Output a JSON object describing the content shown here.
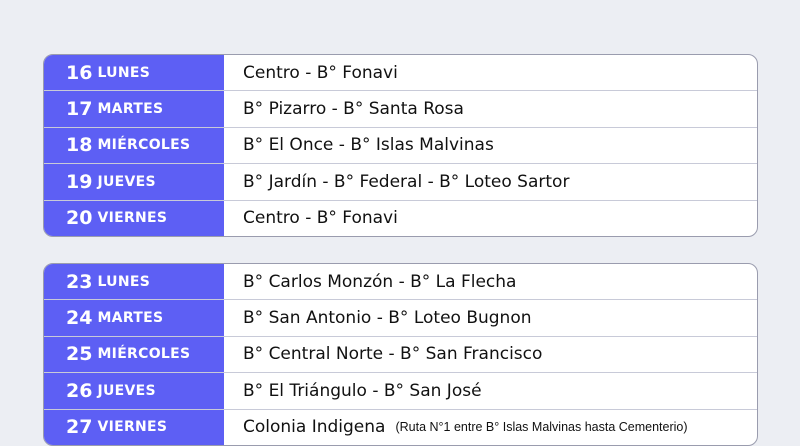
{
  "colors": {
    "day_bg": "#5d5ff4",
    "page_bg": "#eceef3"
  },
  "weeks": [
    {
      "rows": [
        {
          "num": "16",
          "day": "LUNES",
          "place": "Centro - B° Fonavi"
        },
        {
          "num": "17",
          "day": "MARTES",
          "place": "B° Pizarro - B° Santa Rosa"
        },
        {
          "num": "18",
          "day": "MIÉRCOLES",
          "place": "B° El Once - B° Islas Malvinas"
        },
        {
          "num": "19",
          "day": "JUEVES",
          "place": "B° Jardín - B° Federal - B° Loteo Sartor"
        },
        {
          "num": "20",
          "day": "VIERNES",
          "place": "Centro - B° Fonavi"
        }
      ]
    },
    {
      "rows": [
        {
          "num": "23",
          "day": "LUNES",
          "place": "B° Carlos Monzón - B° La Flecha"
        },
        {
          "num": "24",
          "day": "MARTES",
          "place": "B° San Antonio - B° Loteo Bugnon"
        },
        {
          "num": "25",
          "day": "MIÉRCOLES",
          "place": "B° Central Norte - B° San Francisco"
        },
        {
          "num": "26",
          "day": "JUEVES",
          "place": "B° El Triángulo - B° San José"
        },
        {
          "num": "27",
          "day": "VIERNES",
          "place": "Colonia Indigena",
          "note": "(Ruta N°1 entre B° Islas Malvinas hasta Cementerio)"
        }
      ]
    }
  ]
}
